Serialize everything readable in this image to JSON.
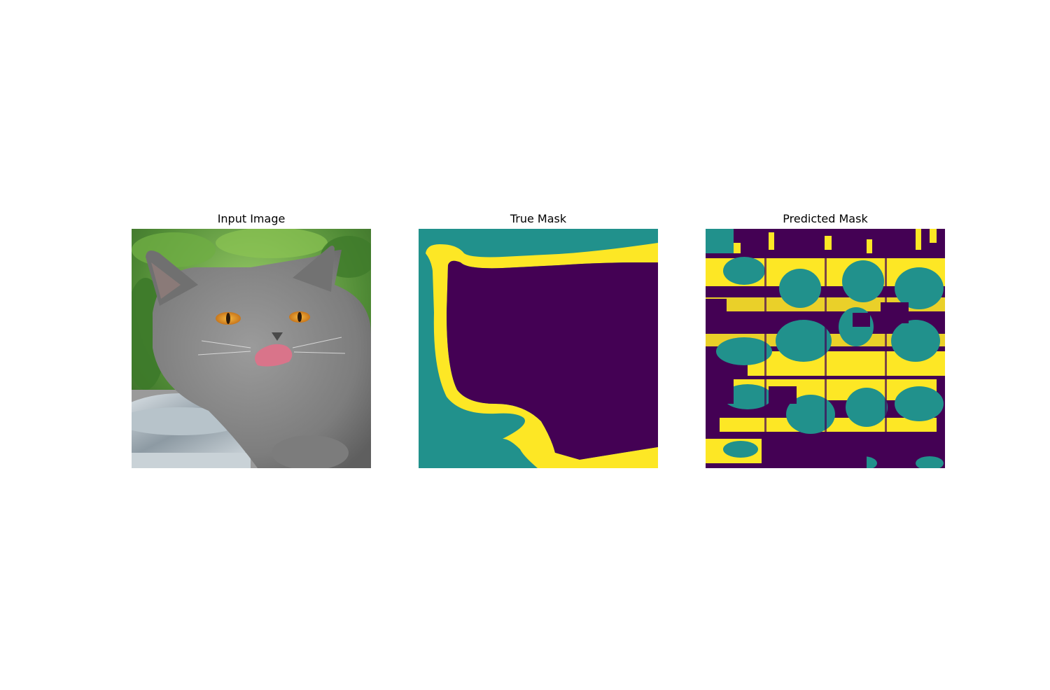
{
  "figure": {
    "panels": [
      {
        "id": "input",
        "title": "Input Image"
      },
      {
        "id": "true_mask",
        "title": "True Mask"
      },
      {
        "id": "predicted_mask",
        "title": "Predicted Mask"
      }
    ]
  },
  "colors": {
    "mask_class_0": "#440154",
    "mask_class_1": "#21918c",
    "mask_class_2": "#fde725",
    "background": "#ffffff"
  }
}
